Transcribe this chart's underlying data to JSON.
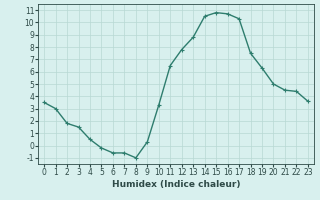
{
  "x": [
    0,
    1,
    2,
    3,
    4,
    5,
    6,
    7,
    8,
    9,
    10,
    11,
    12,
    13,
    14,
    15,
    16,
    17,
    18,
    19,
    20,
    21,
    22,
    23
  ],
  "y": [
    3.5,
    3.0,
    1.8,
    1.5,
    0.5,
    -0.2,
    -0.6,
    -0.6,
    -1.0,
    0.3,
    3.3,
    6.5,
    7.8,
    8.8,
    10.5,
    10.8,
    10.7,
    10.3,
    7.5,
    6.3,
    5.0,
    4.5,
    4.4,
    3.6
  ],
  "line_color": "#2e7d6e",
  "marker": "+",
  "marker_size": 3,
  "marker_color": "#2e7d6e",
  "bg_color": "#d8f0ee",
  "grid_color": "#b8d8d4",
  "xlabel": "Humidex (Indice chaleur)",
  "ylabel": "",
  "title": "",
  "xlim": [
    -0.5,
    23.5
  ],
  "ylim": [
    -1.5,
    11.5
  ],
  "yticks": [
    -1,
    0,
    1,
    2,
    3,
    4,
    5,
    6,
    7,
    8,
    9,
    10,
    11
  ],
  "xticks": [
    0,
    1,
    2,
    3,
    4,
    5,
    6,
    7,
    8,
    9,
    10,
    11,
    12,
    13,
    14,
    15,
    16,
    17,
    18,
    19,
    20,
    21,
    22,
    23
  ],
  "line_width": 1.0,
  "tick_fontsize": 5.5,
  "xlabel_fontsize": 6.5,
  "tick_label_color": "#2e4a47",
  "axis_color": "#2e4a47"
}
